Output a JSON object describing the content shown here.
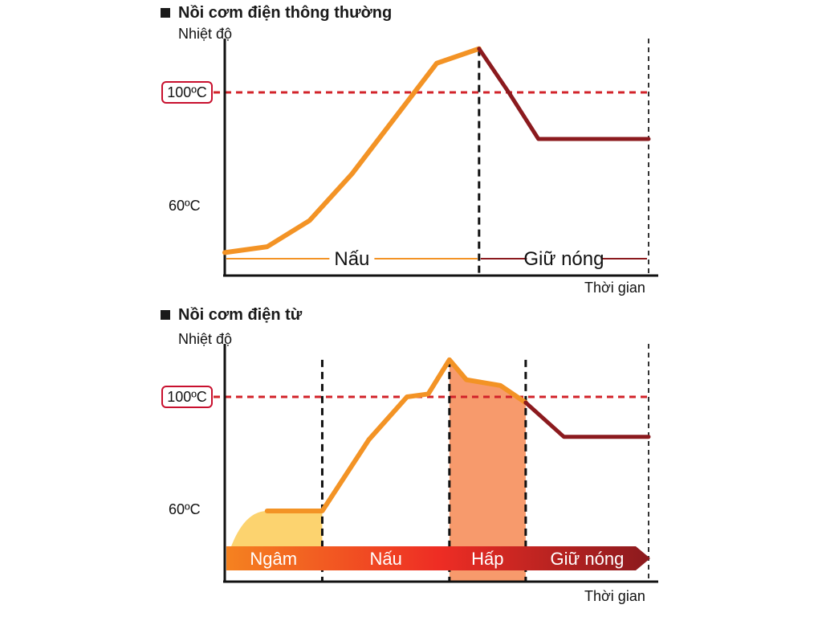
{
  "colors": {
    "orange": "#f39325",
    "dark_red": "#8b1a1e",
    "red_dashed": "#d2232a",
    "steam_fill": "#f79a6c",
    "soak_fill": "#fcd36f",
    "band_start": "#f58220",
    "band_mid": "#ee2d24",
    "band_end": "#8b1a1e"
  },
  "chart_data": [
    {
      "type": "line",
      "title": "Nồi cơm điện thông thường",
      "ylabel": "Nhiệt độ",
      "xlabel": "Thời gian",
      "reference_lines": [
        "100ºC",
        "60ºC"
      ],
      "temperature_curve": {
        "points": [
          [
            0,
            45
          ],
          [
            10,
            47
          ],
          [
            20,
            56
          ],
          [
            30,
            72
          ],
          [
            40,
            91
          ],
          [
            50,
            110
          ],
          [
            60,
            115
          ],
          [
            67,
            100
          ],
          [
            74,
            84
          ],
          [
            100,
            84
          ]
        ],
        "phase_change_at": 60
      },
      "phase_boundaries": [
        60,
        100
      ],
      "phases": [
        {
          "label": "Nấu",
          "start": 0,
          "end": 60
        },
        {
          "label": "Giữ nóng",
          "start": 60,
          "end": 100
        }
      ]
    },
    {
      "type": "line",
      "title": "Nồi cơm điện từ",
      "ylabel": "Nhiệt độ",
      "xlabel": "Thời gian",
      "reference_lines": [
        "100ºC",
        "60ºC"
      ],
      "temperature_curve": {
        "points": [
          [
            10,
            60
          ],
          [
            23,
            60
          ],
          [
            34,
            85
          ],
          [
            43,
            100
          ],
          [
            48,
            101
          ],
          [
            53,
            113
          ],
          [
            57,
            106
          ],
          [
            65,
            104
          ],
          [
            71,
            98
          ],
          [
            80,
            86
          ],
          [
            100,
            86
          ]
        ],
        "phase_change_at": 71
      },
      "phase_boundaries": [
        23,
        53,
        71,
        100
      ],
      "phases": [
        {
          "label": "Ngâm",
          "start": 0,
          "end": 23
        },
        {
          "label": "Nấu",
          "start": 23,
          "end": 53
        },
        {
          "label": "Hấp",
          "start": 53,
          "end": 71
        },
        {
          "label": "Giữ nóng",
          "start": 71,
          "end": 100
        }
      ]
    }
  ]
}
